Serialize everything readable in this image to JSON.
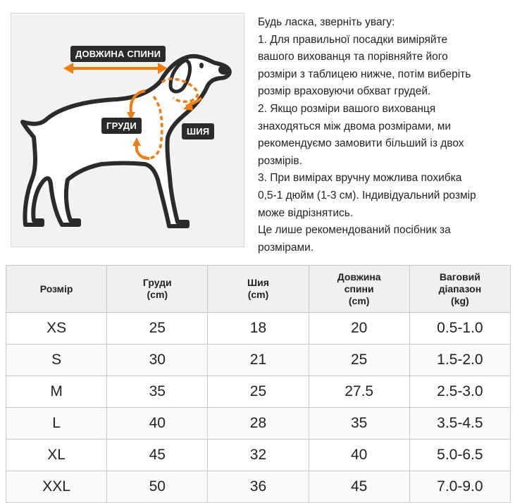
{
  "labels": {
    "back_length": "ДОВЖИНА СПИНИ",
    "chest": "ГРУДИ",
    "neck": "ШИЯ"
  },
  "notes": [
    "Будь ласка, зверніть увагу:",
    "1. Для правильної посадки виміряйте",
    "вашого вихованця та порівняйте його",
    "розміри з таблицею нижче, потім виберіть",
    "розмір враховуючи обхват грудей.",
    "2. Якщо розміри вашого вихованця",
    "знаходяться між двома розмірами, ми",
    "рекомендуємо замовити більший із двох",
    "розмірів.",
    "3. При вимірах вручну можлива похибка",
    "0,5-1 дюйм (1-3 см). Індивідуальний розмір",
    "може відрізнятись.",
    "Це лише рекомендований посібник за",
    "розмірами."
  ],
  "table": {
    "headers": [
      [
        "Розмір"
      ],
      [
        "Груди",
        "(cm)"
      ],
      [
        "Шия",
        "(cm)"
      ],
      [
        "Довжина",
        "спини",
        "(cm)"
      ],
      [
        "Ваговий",
        "діапазон",
        "(kg)"
      ]
    ],
    "rows": [
      [
        "XS",
        "25",
        "18",
        "20",
        "0.5-1.0"
      ],
      [
        "S",
        "30",
        "21",
        "25",
        "1.5-2.0"
      ],
      [
        "M",
        "35",
        "25",
        "27.5",
        "2.5-3.0"
      ],
      [
        "L",
        "40",
        "28",
        "35",
        "3.5-4.5"
      ],
      [
        "XL",
        "45",
        "32",
        "40",
        "5.0-6.5"
      ],
      [
        "XXL",
        "50",
        "36",
        "45",
        "7.0-9.0"
      ]
    ]
  },
  "colors": {
    "accent": "#f07d12",
    "outline": "#2b2b2b",
    "tag_bg": "#2b2b2b",
    "header_bg": "#f0f0f0"
  }
}
